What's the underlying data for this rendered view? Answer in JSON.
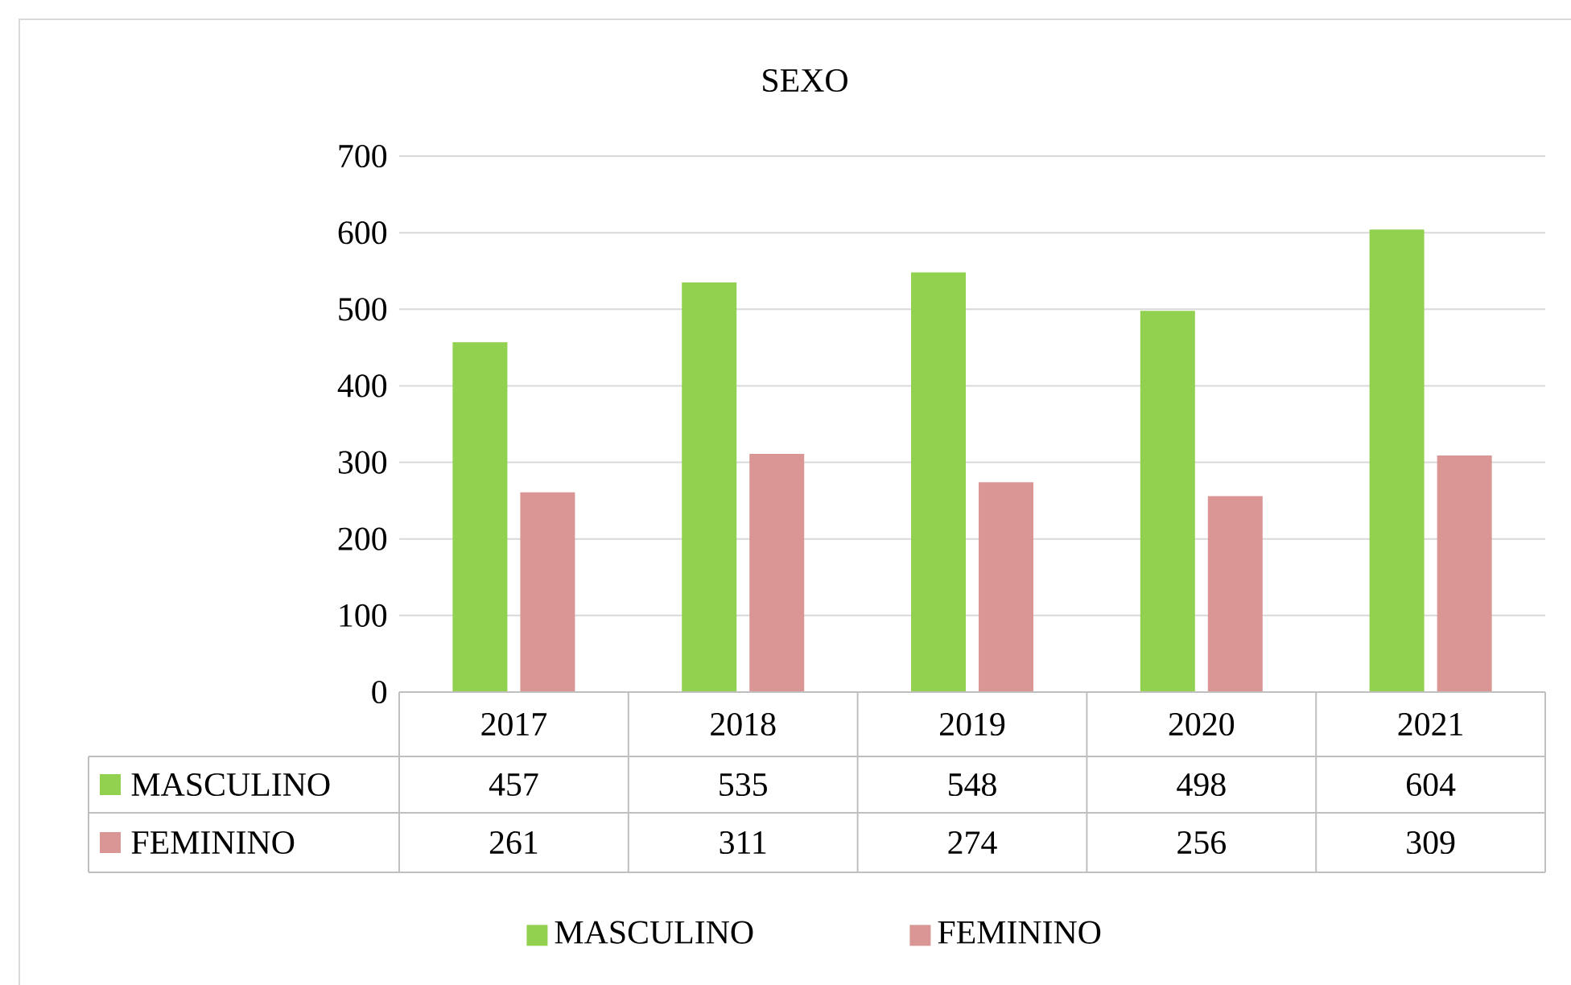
{
  "chart_data": {
    "type": "bar",
    "title": "SEXO",
    "categories": [
      "2017",
      "2018",
      "2019",
      "2020",
      "2021"
    ],
    "series": [
      {
        "name": "MASCULINO",
        "color": "#92d050",
        "values": [
          457,
          535,
          548,
          498,
          604
        ]
      },
      {
        "name": "FEMININO",
        "color": "#da9694",
        "values": [
          261,
          311,
          274,
          256,
          309
        ]
      }
    ],
    "ylim": [
      0,
      700
    ],
    "yticks": [
      0,
      100,
      200,
      300,
      400,
      500,
      600,
      700
    ],
    "grid": "y",
    "legend": "bottom",
    "data_labels": true
  }
}
